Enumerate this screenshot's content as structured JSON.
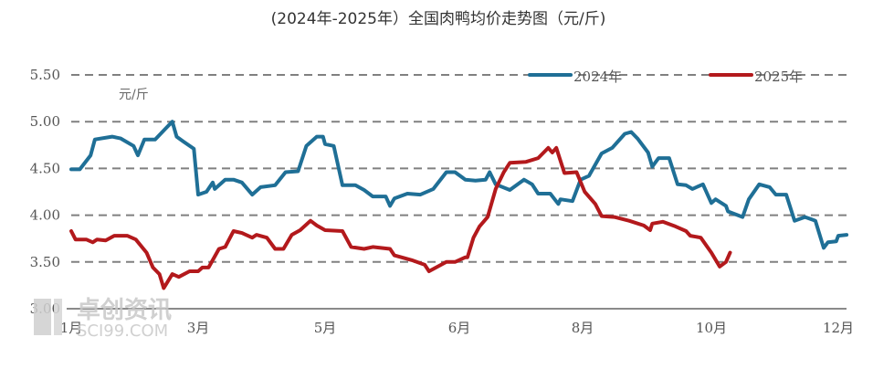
{
  "chart_data": {
    "type": "line",
    "title": "(2024年-2025年）全国肉鸭均价走势图（元/斤)",
    "ylabel": "元/斤",
    "xlabel": "",
    "ylim": [
      3.0,
      5.5
    ],
    "yticks": [
      "5.50",
      "5.00",
      "4.50",
      "4.00",
      "3.50",
      "3.00"
    ],
    "ytick_values": [
      5.5,
      5.0,
      4.5,
      4.0,
      3.5,
      3.0
    ],
    "xticks": [
      {
        "label": "1月",
        "date": "01-01"
      },
      {
        "label": "3月",
        "date": "03-01"
      },
      {
        "label": "5月",
        "date": "05-01"
      },
      {
        "label": "6月",
        "date": "06-01"
      },
      {
        "label": "8月",
        "date": "08-01"
      },
      {
        "label": "10月",
        "date": "10-01"
      },
      {
        "label": "12月",
        "date": "12-01"
      }
    ],
    "grid": "horizontal dashed",
    "legend_position": "top-right",
    "series": [
      {
        "name": "2024年",
        "color": "#1f6f96",
        "x": [
          "01-01",
          "01-05",
          "01-10",
          "01-12",
          "01-20",
          "01-24",
          "01-30",
          "02-01",
          "02-04",
          "02-09",
          "02-14",
          "02-17",
          "02-19",
          "02-22",
          "02-27",
          "02-28",
          "03-01",
          "03-05",
          "03-08",
          "03-09",
          "03-14",
          "03-18",
          "03-22",
          "03-27",
          "03-31",
          "04-07",
          "04-12",
          "04-18",
          "04-22",
          "04-27",
          "04-30",
          "05-01",
          "05-03",
          "05-05",
          "05-08",
          "05-10",
          "05-12",
          "05-15",
          "05-16",
          "05-17",
          "05-20",
          "05-23",
          "05-26",
          "05-29",
          "05-31",
          "06-04",
          "06-09",
          "06-14",
          "06-16",
          "06-19",
          "06-26",
          "07-03",
          "07-07",
          "07-10",
          "07-16",
          "07-20",
          "07-21",
          "07-27",
          "07-31",
          "08-04",
          "08-10",
          "08-15",
          "08-21",
          "08-24",
          "08-27",
          "09-01",
          "09-03",
          "09-06",
          "09-11",
          "09-15",
          "09-19",
          "09-22",
          "09-27",
          "10-01",
          "10-03",
          "10-08",
          "10-09",
          "10-16",
          "10-19",
          "10-24",
          "10-29",
          "11-01",
          "11-06",
          "11-10",
          "11-15",
          "11-20",
          "11-24",
          "11-26",
          "11-30",
          "12-01",
          "12-05"
        ],
        "y": [
          4.49,
          4.49,
          4.64,
          4.81,
          4.84,
          4.82,
          4.74,
          4.64,
          4.81,
          4.81,
          4.93,
          5.0,
          4.84,
          4.79,
          4.71,
          4.47,
          4.22,
          4.25,
          4.35,
          4.28,
          4.38,
          4.38,
          4.35,
          4.22,
          4.3,
          4.32,
          4.46,
          4.47,
          4.74,
          4.84,
          4.84,
          4.76,
          4.74,
          4.32,
          4.32,
          4.27,
          4.2,
          4.2,
          4.1,
          4.18,
          4.23,
          4.22,
          4.28,
          4.46,
          4.46,
          4.38,
          4.37,
          4.38,
          4.46,
          4.33,
          4.27,
          4.38,
          4.33,
          4.23,
          4.23,
          4.12,
          4.17,
          4.15,
          4.38,
          4.42,
          4.66,
          4.72,
          4.87,
          4.89,
          4.82,
          4.67,
          4.52,
          4.61,
          4.61,
          4.33,
          4.32,
          4.28,
          4.33,
          4.13,
          4.17,
          4.1,
          4.04,
          3.98,
          4.17,
          4.33,
          4.3,
          4.22,
          4.22,
          3.94,
          3.98,
          3.94,
          3.65,
          3.71,
          3.72,
          3.78,
          3.79
        ]
      },
      {
        "name": "2025年",
        "color": "#b3191c",
        "x": [
          "01-01",
          "01-03",
          "01-08",
          "01-11",
          "01-13",
          "01-17",
          "01-21",
          "01-27",
          "01-31",
          "02-05",
          "02-08",
          "02-11",
          "02-13",
          "02-17",
          "02-20",
          "02-25",
          "03-01",
          "03-03",
          "03-06",
          "03-11",
          "03-14",
          "03-18",
          "03-22",
          "03-27",
          "03-29",
          "04-03",
          "04-07",
          "04-11",
          "04-15",
          "04-19",
          "04-24",
          "04-27",
          "05-01",
          "05-05",
          "05-07",
          "05-10",
          "05-12",
          "05-16",
          "05-17",
          "05-21",
          "05-24",
          "05-25",
          "05-27",
          "05-29",
          "05-31",
          "06-04",
          "06-05",
          "06-08",
          "06-11",
          "06-15",
          "06-19",
          "06-23",
          "06-26",
          "07-04",
          "07-10",
          "07-15",
          "07-17",
          "07-19",
          "07-23",
          "07-29",
          "08-02",
          "08-07",
          "08-10",
          "08-16",
          "08-23",
          "08-30",
          "09-02",
          "09-03",
          "09-08",
          "09-14",
          "09-19",
          "09-21",
          "09-26",
          "10-01",
          "10-05",
          "10-08",
          "10-10"
        ],
        "y": [
          3.83,
          3.74,
          3.74,
          3.71,
          3.74,
          3.73,
          3.78,
          3.78,
          3.74,
          3.6,
          3.44,
          3.37,
          3.22,
          3.37,
          3.34,
          3.4,
          3.4,
          3.44,
          3.44,
          3.64,
          3.66,
          3.83,
          3.81,
          3.76,
          3.79,
          3.76,
          3.64,
          3.64,
          3.79,
          3.84,
          3.94,
          3.89,
          3.84,
          3.83,
          3.66,
          3.64,
          3.66,
          3.64,
          3.57,
          3.52,
          3.47,
          3.4,
          3.45,
          3.5,
          3.5,
          3.55,
          3.55,
          3.76,
          3.88,
          3.98,
          4.28,
          4.46,
          4.56,
          4.57,
          4.61,
          4.72,
          4.67,
          4.72,
          4.45,
          4.46,
          4.25,
          4.12,
          3.99,
          3.98,
          3.94,
          3.89,
          3.84,
          3.91,
          3.93,
          3.88,
          3.83,
          3.78,
          3.76,
          3.6,
          3.45,
          3.5,
          3.6
        ]
      }
    ]
  },
  "watermark": {
    "text": "卓创资讯",
    "url_text": "SCI99.COM"
  }
}
